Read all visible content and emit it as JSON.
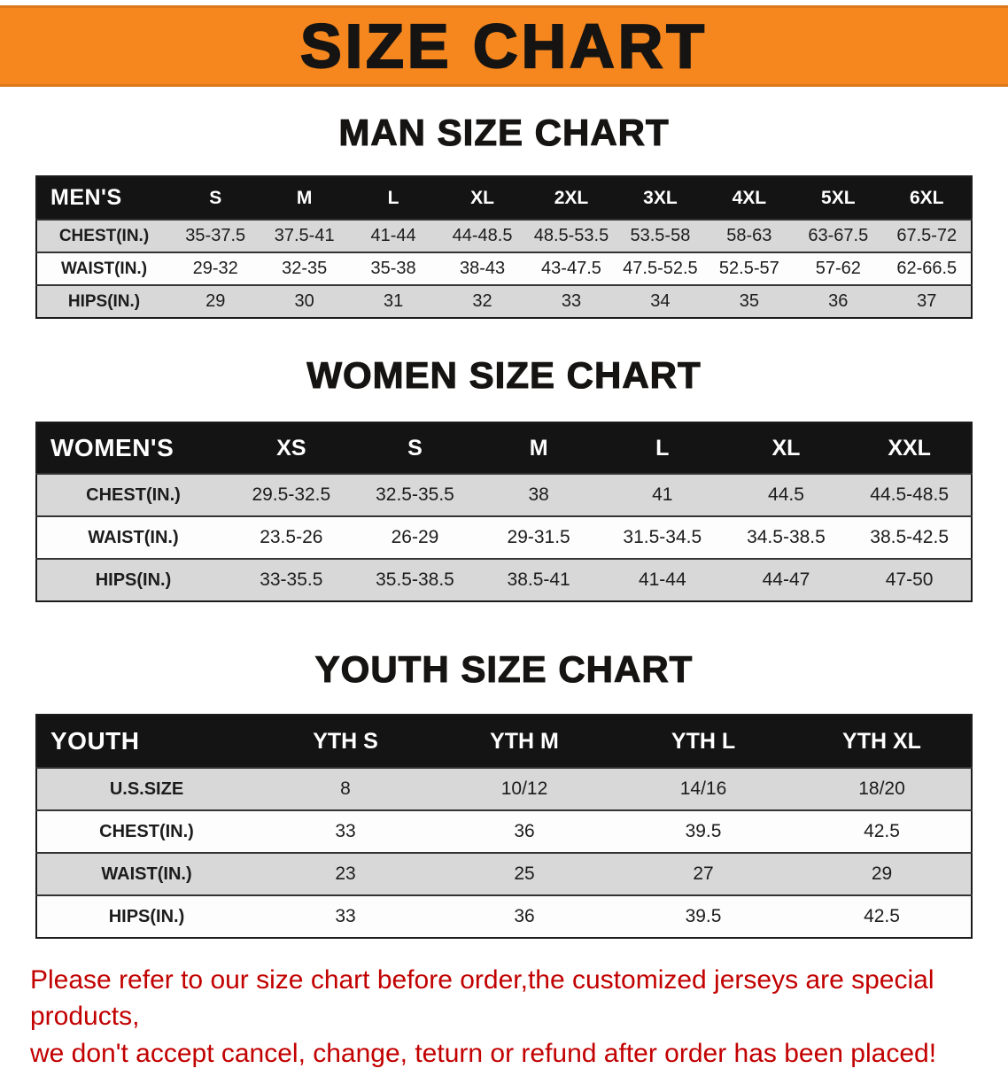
{
  "banner": {
    "title": "SIZE CHART"
  },
  "colors": {
    "banner_orange": "#F6871F",
    "header_bg": "#141414",
    "row_gray": "#D8D8D8",
    "disclaimer_red": "#C20000",
    "text_black": "#161412"
  },
  "men": {
    "heading": "MAN SIZE CHART",
    "corner": "MEN'S",
    "sizes": [
      "S",
      "M",
      "L",
      "XL",
      "2XL",
      "3XL",
      "4XL",
      "5XL",
      "6XL"
    ],
    "rows": [
      {
        "label": "CHEST(IN.)",
        "values": [
          "35-37.5",
          "37.5-41",
          "41-44",
          "44-48.5",
          "48.5-53.5",
          "53.5-58",
          "58-63",
          "63-67.5",
          "67.5-72"
        ]
      },
      {
        "label": "WAIST(IN.)",
        "values": [
          "29-32",
          "32-35",
          "35-38",
          "38-43",
          "43-47.5",
          "47.5-52.5",
          "52.5-57",
          "57-62",
          "62-66.5"
        ]
      },
      {
        "label": "HIPS(IN.)",
        "values": [
          "29",
          "30",
          "31",
          "32",
          "33",
          "34",
          "35",
          "36",
          "37"
        ]
      }
    ]
  },
  "women": {
    "heading": "WOMEN SIZE CHART",
    "corner": "WOMEN'S",
    "sizes": [
      "XS",
      "S",
      "M",
      "L",
      "XL",
      "XXL"
    ],
    "rows": [
      {
        "label": "CHEST(IN.)",
        "values": [
          "29.5-32.5",
          "32.5-35.5",
          "38",
          "41",
          "44.5",
          "44.5-48.5"
        ]
      },
      {
        "label": "WAIST(IN.)",
        "values": [
          "23.5-26",
          "26-29",
          "29-31.5",
          "31.5-34.5",
          "34.5-38.5",
          "38.5-42.5"
        ]
      },
      {
        "label": "HIPS(IN.)",
        "values": [
          "33-35.5",
          "35.5-38.5",
          "38.5-41",
          "41-44",
          "44-47",
          "47-50"
        ]
      }
    ]
  },
  "youth": {
    "heading": "YOUTH SIZE CHART",
    "corner": "YOUTH",
    "sizes": [
      "YTH S",
      "YTH M",
      "YTH L",
      "YTH XL"
    ],
    "rows": [
      {
        "label": "U.S.SIZE",
        "values": [
          "8",
          "10/12",
          "14/16",
          "18/20"
        ]
      },
      {
        "label": "CHEST(IN.)",
        "values": [
          "33",
          "36",
          "39.5",
          "42.5"
        ]
      },
      {
        "label": "WAIST(IN.)",
        "values": [
          "23",
          "25",
          "27",
          "29"
        ]
      },
      {
        "label": "HIPS(IN.)",
        "values": [
          "33",
          "36",
          "39.5",
          "42.5"
        ]
      }
    ]
  },
  "disclaimer": {
    "line1": "Please refer to our size chart before order,the customized jerseys are special products,",
    "line2": "we don't accept cancel, change, teturn or refund after order has been placed!"
  }
}
